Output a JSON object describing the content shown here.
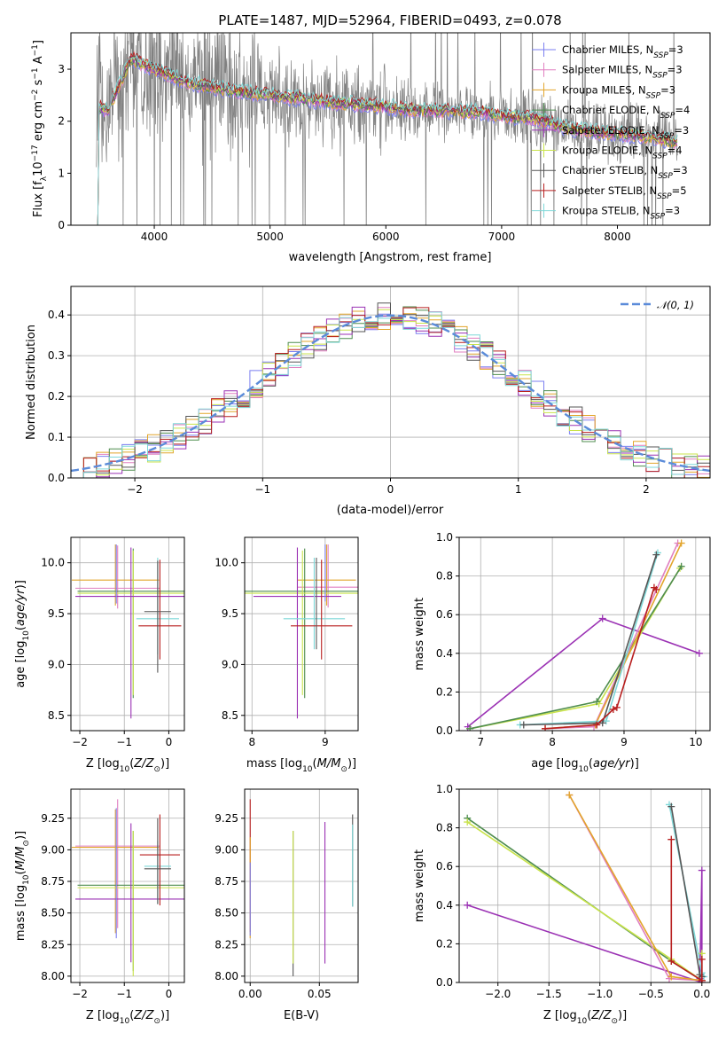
{
  "title": "PLATE=1487, MJD=52964, FIBERID=0493, z=0.078",
  "colors": [
    "#7b7ff0",
    "#e07fc0",
    "#e2a52b",
    "#4f8d4f",
    "#9b32b4",
    "#c9e34b",
    "#555555",
    "#b81f1f",
    "#7fd8d8"
  ],
  "spectrum": {
    "xlabel": "wavelength [Angstrom, rest frame]",
    "ylabel": "Flux [f_λ 10^-17 erg cm^-2 s^-1 A^-1]",
    "xlim": [
      3280,
      8800
    ],
    "ylim": [
      0,
      3.7
    ],
    "xticks": [
      "4000",
      "5000",
      "6000",
      "7000",
      "8000"
    ],
    "yticks": [
      "0",
      "1",
      "2",
      "3"
    ],
    "legend": [
      "Chabrier MILES, N_SSP=3",
      "Salpeter MILES, N_SSP=3",
      "Kroupa MILES, N_SSP=3",
      "Chabrier ELODIE, N_SSP=4",
      "Salpeter ELODIE, N_SSP=3",
      "Kroupa ELODIE, N_SSP=4",
      "Chabrier STELIB, N_SSP=3",
      "Salpeter STELIB, N_SSP=5",
      "Kroupa STELIB, N_SSP=3"
    ],
    "data_color": "#808080",
    "continuum": {
      "x": [
        3500,
        3600,
        3800,
        4000,
        4300,
        4500,
        4800,
        5000,
        5300,
        5600,
        5900,
        6200,
        6500,
        6800,
        7000,
        7300,
        7600,
        8000,
        8300,
        8500
      ],
      "y": [
        2.3,
        2.2,
        3.2,
        3.0,
        2.75,
        2.65,
        2.55,
        2.5,
        2.42,
        2.35,
        2.3,
        2.22,
        2.2,
        2.18,
        2.1,
        2.05,
        1.85,
        1.75,
        1.7,
        1.6
      ]
    }
  },
  "chart_data": [
    {
      "type": "step",
      "xlabel": "(data-model)/error",
      "ylabel": "Normed distribution",
      "xlim": [
        -2.5,
        2.5
      ],
      "ylim": [
        0,
        0.47
      ],
      "xticks": [
        "−2",
        "−1",
        "0",
        "1",
        "2"
      ],
      "yticks": [
        "0.0",
        "0.1",
        "0.2",
        "0.3",
        "0.4"
      ],
      "legend": "𝒩(0, 1)",
      "gauss_color": "#5b8bd9"
    },
    {
      "type": "errorbar",
      "xlabel": "Z [log10(Z/Z⊙)]",
      "ylabel": "age  [log10(age/yr)]",
      "xlim": [
        -2.2,
        0.35
      ],
      "ylim": [
        8.35,
        10.25
      ],
      "xticks": [
        "−2",
        "−1",
        "0"
      ],
      "yticks": [
        "8.5",
        "9.0",
        "9.5",
        "10.0"
      ],
      "points": [
        {
          "x": -1.15,
          "y": 9.75,
          "xerr": 0.95,
          "yerr": [
            0.2,
            0.42
          ],
          "c": "#e07fc0"
        },
        {
          "x": -1.2,
          "y": 9.83,
          "xerr": 0.98,
          "yerr": [
            0.25,
            0.35
          ],
          "c": "#e2a52b"
        },
        {
          "x": -0.8,
          "y": 9.72,
          "xerr": 1.25,
          "yerr": [
            1.05,
            0.42
          ],
          "c": "#4f8d4f"
        },
        {
          "x": -0.8,
          "y": 9.7,
          "xerr": 1.25,
          "yerr": [
            1.0,
            0.42
          ],
          "c": "#c9e34b"
        },
        {
          "x": -0.85,
          "y": 9.67,
          "xerr": 1.25,
          "yerr": [
            1.2,
            0.48
          ],
          "c": "#9b32b4"
        },
        {
          "x": -0.25,
          "y": 9.45,
          "xerr": 0.48,
          "yerr": [
            0.35,
            0.6
          ],
          "c": "#7fd8d8"
        },
        {
          "x": -0.2,
          "y": 9.38,
          "xerr": 0.48,
          "yerr": [
            0.33,
            0.65
          ],
          "c": "#b81f1f"
        },
        {
          "x": -0.25,
          "y": 9.52,
          "xerr": 0.3,
          "yerr": [
            0.6,
            0.5
          ],
          "c": "#555555"
        },
        {
          "x": -1.18,
          "y": 9.8,
          "xerr": 0.0,
          "yerr": [
            0.2,
            0.38
          ],
          "c": "#7b7ff0"
        }
      ]
    },
    {
      "type": "errorbar",
      "xlabel": "mass [log10(M/M⊙)]",
      "ylabel": "",
      "xlim": [
        7.9,
        9.45
      ],
      "ylim": [
        8.35,
        10.25
      ],
      "xticks": [
        "8",
        "9"
      ],
      "yticks": [
        "8.5",
        "9.0",
        "9.5",
        "10.0"
      ],
      "points": [
        {
          "x": 9.04,
          "y": 9.76,
          "xerr": 0.42,
          "yerr": [
            0.2,
            0.42
          ],
          "c": "#e07fc0"
        },
        {
          "x": 9.02,
          "y": 9.83,
          "xerr": 0.4,
          "yerr": [
            0.25,
            0.35
          ],
          "c": "#e2a52b"
        },
        {
          "x": 8.72,
          "y": 9.72,
          "xerr": 0.85,
          "yerr": [
            1.05,
            0.42
          ],
          "c": "#4f8d4f"
        },
        {
          "x": 8.69,
          "y": 9.7,
          "xerr": 0.85,
          "yerr": [
            1.0,
            0.42
          ],
          "c": "#c9e34b"
        },
        {
          "x": 8.62,
          "y": 9.67,
          "xerr": 0.6,
          "yerr": [
            1.2,
            0.48
          ],
          "c": "#9b32b4"
        },
        {
          "x": 8.85,
          "y": 9.45,
          "xerr": 0.42,
          "yerr": [
            0.3,
            0.6
          ],
          "c": "#7fd8d8"
        },
        {
          "x": 8.95,
          "y": 9.38,
          "xerr": 0.42,
          "yerr": [
            0.33,
            0.65
          ],
          "c": "#b81f1f"
        },
        {
          "x": 8.88,
          "y": 9.5,
          "xerr": 0.0,
          "yerr": [
            0.35,
            0.55
          ],
          "c": "#555555"
        },
        {
          "x": 9.0,
          "y": 9.82,
          "xerr": 0.0,
          "yerr": [
            0.2,
            0.36
          ],
          "c": "#7b7ff0"
        }
      ]
    },
    {
      "type": "line",
      "xlabel": "age  [log10(age/yr)]",
      "ylabel": "mass weight",
      "xlim": [
        6.7,
        10.2
      ],
      "ylim": [
        0,
        1.0
      ],
      "xticks": [
        "7",
        "8",
        "9",
        "10"
      ],
      "yticks": [
        "0.0",
        "0.2",
        "0.4",
        "0.6",
        "0.8",
        "1.0"
      ],
      "series": [
        {
          "c": "#9b32b4",
          "x": [
            6.82,
            8.7,
            10.05
          ],
          "y": [
            0.02,
            0.58,
            0.4
          ]
        },
        {
          "c": "#c9e34b",
          "x": [
            6.85,
            8.65,
            9.78
          ],
          "y": [
            0.01,
            0.14,
            0.84
          ]
        },
        {
          "c": "#4f8d4f",
          "x": [
            6.85,
            8.62,
            9.8
          ],
          "y": [
            0.01,
            0.15,
            0.85
          ]
        },
        {
          "c": "#e07fc0",
          "x": [
            7.9,
            8.58,
            9.75
          ],
          "y": [
            0.01,
            0.02,
            0.97
          ]
        },
        {
          "c": "#e2a52b",
          "x": [
            7.9,
            8.6,
            9.8
          ],
          "y": [
            0.01,
            0.03,
            0.97
          ]
        },
        {
          "c": "#7fd8d8",
          "x": [
            7.55,
            8.75,
            9.47
          ],
          "y": [
            0.03,
            0.05,
            0.92
          ]
        },
        {
          "c": "#555555",
          "x": [
            7.6,
            8.7,
            9.45
          ],
          "y": [
            0.03,
            0.04,
            0.91
          ]
        },
        {
          "c": "#b81f1f",
          "x": [
            7.9,
            8.62,
            8.85,
            8.9,
            9.42,
            9.45
          ],
          "y": [
            0.01,
            0.03,
            0.11,
            0.12,
            0.74,
            0.73
          ]
        }
      ]
    },
    {
      "type": "errorbar",
      "xlabel": "Z [log10(Z/Z⊙)]",
      "ylabel": "mass [log10(M/M⊙)]",
      "xlim": [
        -2.2,
        0.35
      ],
      "ylim": [
        7.95,
        9.48
      ],
      "xticks": [
        "−2",
        "−1",
        "0"
      ],
      "yticks": [
        "8.00",
        "8.25",
        "8.50",
        "8.75",
        "9.00",
        "9.25"
      ],
      "points": [
        {
          "x": -1.15,
          "y": 9.03,
          "xerr": 0.95,
          "yerr": [
            0.65,
            0.37
          ],
          "c": "#e07fc0"
        },
        {
          "x": -1.2,
          "y": 9.02,
          "xerr": 0.98,
          "yerr": [
            0.68,
            0.3
          ],
          "c": "#e2a52b"
        },
        {
          "x": -0.8,
          "y": 8.72,
          "xerr": 1.25,
          "yerr": [
            0.68,
            0.43
          ],
          "c": "#4f8d4f"
        },
        {
          "x": -0.8,
          "y": 8.7,
          "xerr": 1.25,
          "yerr": [
            0.7,
            0.45
          ],
          "c": "#c9e34b"
        },
        {
          "x": -0.85,
          "y": 8.61,
          "xerr": 1.25,
          "yerr": [
            0.5,
            0.6
          ],
          "c": "#9b32b4"
        },
        {
          "x": -0.25,
          "y": 8.87,
          "xerr": 0.3,
          "yerr": [
            0.3,
            0.2
          ],
          "c": "#7fd8d8"
        },
        {
          "x": -0.2,
          "y": 8.96,
          "xerr": 0.45,
          "yerr": [
            0.4,
            0.32
          ],
          "c": "#b81f1f"
        },
        {
          "x": -0.25,
          "y": 8.85,
          "xerr": 0.3,
          "yerr": [
            0.28,
            0.4
          ],
          "c": "#555555"
        },
        {
          "x": -1.18,
          "y": 9.0,
          "xerr": 0.0,
          "yerr": [
            0.7,
            0.33
          ],
          "c": "#7b7ff0"
        }
      ]
    },
    {
      "type": "errorbar",
      "xlabel": "E(B-V)",
      "ylabel": "",
      "xlim": [
        -0.004,
        0.078
      ],
      "ylim": [
        7.95,
        9.48
      ],
      "xticks": [
        "0.00",
        "0.05"
      ],
      "yticks": [
        "8.00",
        "8.25",
        "8.50",
        "8.75",
        "9.00",
        "9.25"
      ],
      "points": [
        {
          "x": 0.0,
          "y": 9.0,
          "xerr": 0.0,
          "yerr": [
            0.65,
            0.4
          ],
          "c": "#b81f1f"
        },
        {
          "x": 0.0,
          "y": 8.8,
          "xerr": 0.0,
          "yerr": [
            0.5,
            0.3
          ],
          "c": "#e2a52b"
        },
        {
          "x": 0.0,
          "y": 8.7,
          "xerr": 0.0,
          "yerr": [
            0.38,
            0.2
          ],
          "c": "#7b7ff0"
        },
        {
          "x": 0.031,
          "y": 8.6,
          "xerr": 0.0,
          "yerr": [
            0.6,
            0.55
          ],
          "c": "#555555"
        },
        {
          "x": 0.031,
          "y": 8.7,
          "xerr": 0.0,
          "yerr": [
            0.6,
            0.45
          ],
          "c": "#c9e34b"
        },
        {
          "x": 0.054,
          "y": 8.65,
          "xerr": 0.0,
          "yerr": [
            0.55,
            0.57
          ],
          "c": "#9b32b4"
        },
        {
          "x": 0.074,
          "y": 8.95,
          "xerr": 0.0,
          "yerr": [
            0.4,
            0.33
          ],
          "c": "#555555"
        },
        {
          "x": 0.074,
          "y": 8.9,
          "xerr": 0.0,
          "yerr": [
            0.35,
            0.3
          ],
          "c": "#7fd8d8"
        }
      ]
    },
    {
      "type": "line",
      "xlabel": "Z [log10(Z/Z⊙)]",
      "ylabel": "mass weight",
      "xlim": [
        -2.38,
        0.08
      ],
      "ylim": [
        0,
        1.0
      ],
      "xticks": [
        "−2.0",
        "−1.5",
        "−1.0",
        "−0.5",
        "0.0"
      ],
      "yticks": [
        "0.0",
        "0.2",
        "0.4",
        "0.6",
        "0.8",
        "1.0"
      ],
      "series": [
        {
          "c": "#9b32b4",
          "x": [
            -2.3,
            0.0,
            0.0,
            -0.02
          ],
          "y": [
            0.4,
            0.0,
            0.58,
            0.02
          ]
        },
        {
          "c": "#4f8d4f",
          "x": [
            -2.3,
            -0.3,
            0.0
          ],
          "y": [
            0.85,
            0.11,
            0.01
          ]
        },
        {
          "c": "#c9e34b",
          "x": [
            -2.3,
            -0.3,
            0.0,
            0.0
          ],
          "y": [
            0.83,
            0.12,
            0.01,
            0.15
          ]
        },
        {
          "c": "#e07fc0",
          "x": [
            -1.3,
            -0.32,
            0.0
          ],
          "y": [
            0.97,
            0.02,
            0.01
          ]
        },
        {
          "c": "#e2a52b",
          "x": [
            -1.3,
            -0.3,
            0.0
          ],
          "y": [
            0.97,
            0.03,
            0.01
          ]
        },
        {
          "c": "#7fd8d8",
          "x": [
            -0.32,
            0.0,
            0.02
          ],
          "y": [
            0.92,
            0.05,
            0.03
          ]
        },
        {
          "c": "#555555",
          "x": [
            -0.3,
            -0.02,
            0.0
          ],
          "y": [
            0.91,
            0.04,
            0.03
          ]
        },
        {
          "c": "#b81f1f",
          "x": [
            -0.3,
            -0.3,
            0.0,
            0.0,
            0.0
          ],
          "y": [
            0.74,
            0.11,
            0.01,
            0.12,
            0.0
          ]
        }
      ]
    }
  ]
}
